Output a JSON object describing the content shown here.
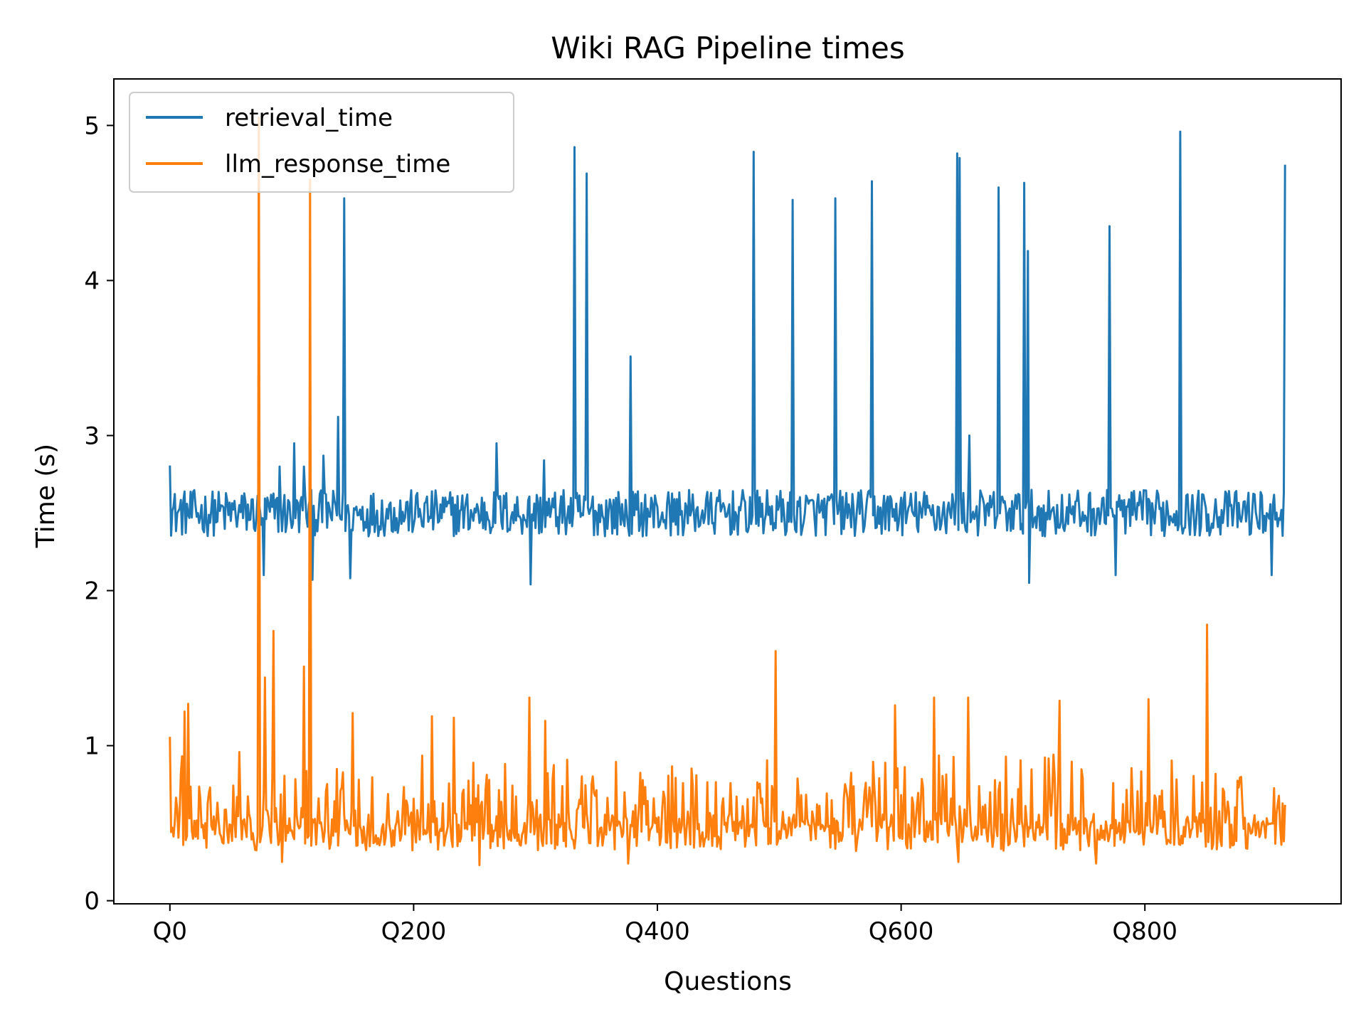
{
  "chart_data": {
    "type": "line",
    "title": "Wiki RAG Pipeline times",
    "xlabel": "Questions",
    "ylabel": "Time (s)",
    "xlim": [
      -46,
      961
    ],
    "ylim": [
      -0.02,
      5.3
    ],
    "grid": false,
    "legend_position": "top-left",
    "x_ticks": [
      {
        "value": 0,
        "label": "Q0"
      },
      {
        "value": 200,
        "label": "Q200"
      },
      {
        "value": 400,
        "label": "Q400"
      },
      {
        "value": 600,
        "label": "Q600"
      },
      {
        "value": 800,
        "label": "Q800"
      }
    ],
    "y_ticks": [
      {
        "value": 0,
        "label": "0"
      },
      {
        "value": 1,
        "label": "1"
      },
      {
        "value": 2,
        "label": "2"
      },
      {
        "value": 3,
        "label": "3"
      },
      {
        "value": 4,
        "label": "4"
      },
      {
        "value": 5,
        "label": "5"
      }
    ],
    "series": [
      {
        "name": "retrieval_time",
        "color": "#1f77b4",
        "count": 916,
        "baseline": 2.5,
        "noise": 0.15,
        "spikes": [
          [
            0,
            2.8
          ],
          [
            77,
            2.1
          ],
          [
            90,
            2.8
          ],
          [
            102,
            2.95
          ],
          [
            110,
            2.8
          ],
          [
            117,
            2.07
          ],
          [
            126,
            2.87
          ],
          [
            138,
            3.12
          ],
          [
            143,
            4.53
          ],
          [
            148,
            2.08
          ],
          [
            268,
            2.95
          ],
          [
            296,
            2.04
          ],
          [
            307,
            2.84
          ],
          [
            332,
            4.86
          ],
          [
            342,
            4.69
          ],
          [
            378,
            3.51
          ],
          [
            479,
            4.83
          ],
          [
            511,
            4.52
          ],
          [
            546,
            4.53
          ],
          [
            576,
            4.64
          ],
          [
            646,
            4.82
          ],
          [
            648,
            4.79
          ],
          [
            656,
            3.0
          ],
          [
            680,
            4.6
          ],
          [
            701,
            4.63
          ],
          [
            704,
            4.19
          ],
          [
            705,
            2.05
          ],
          [
            771,
            4.35
          ],
          [
            776,
            2.1
          ],
          [
            829,
            4.96
          ],
          [
            904,
            2.1
          ],
          [
            915,
            4.74
          ]
        ]
      },
      {
        "name": "llm_response_time",
        "color": "#ff7f0e",
        "count": 916,
        "baseline": 0.42,
        "noise": 0.1,
        "spikes": [
          [
            0,
            1.05
          ],
          [
            12,
            1.22
          ],
          [
            15,
            1.27
          ],
          [
            73,
            5.05
          ],
          [
            78,
            1.44
          ],
          [
            85,
            1.74
          ],
          [
            92,
            0.25
          ],
          [
            110,
            1.51
          ],
          [
            115,
            4.65
          ],
          [
            150,
            1.21
          ],
          [
            215,
            1.19
          ],
          [
            233,
            1.18
          ],
          [
            254,
            0.23
          ],
          [
            295,
            1.31
          ],
          [
            308,
            1.16
          ],
          [
            376,
            0.24
          ],
          [
            497,
            1.61
          ],
          [
            595,
            1.26
          ],
          [
            627,
            1.31
          ],
          [
            647,
            0.25
          ],
          [
            655,
            1.31
          ],
          [
            730,
            1.29
          ],
          [
            760,
            0.24
          ],
          [
            803,
            1.3
          ],
          [
            851,
            1.78
          ]
        ]
      }
    ]
  }
}
